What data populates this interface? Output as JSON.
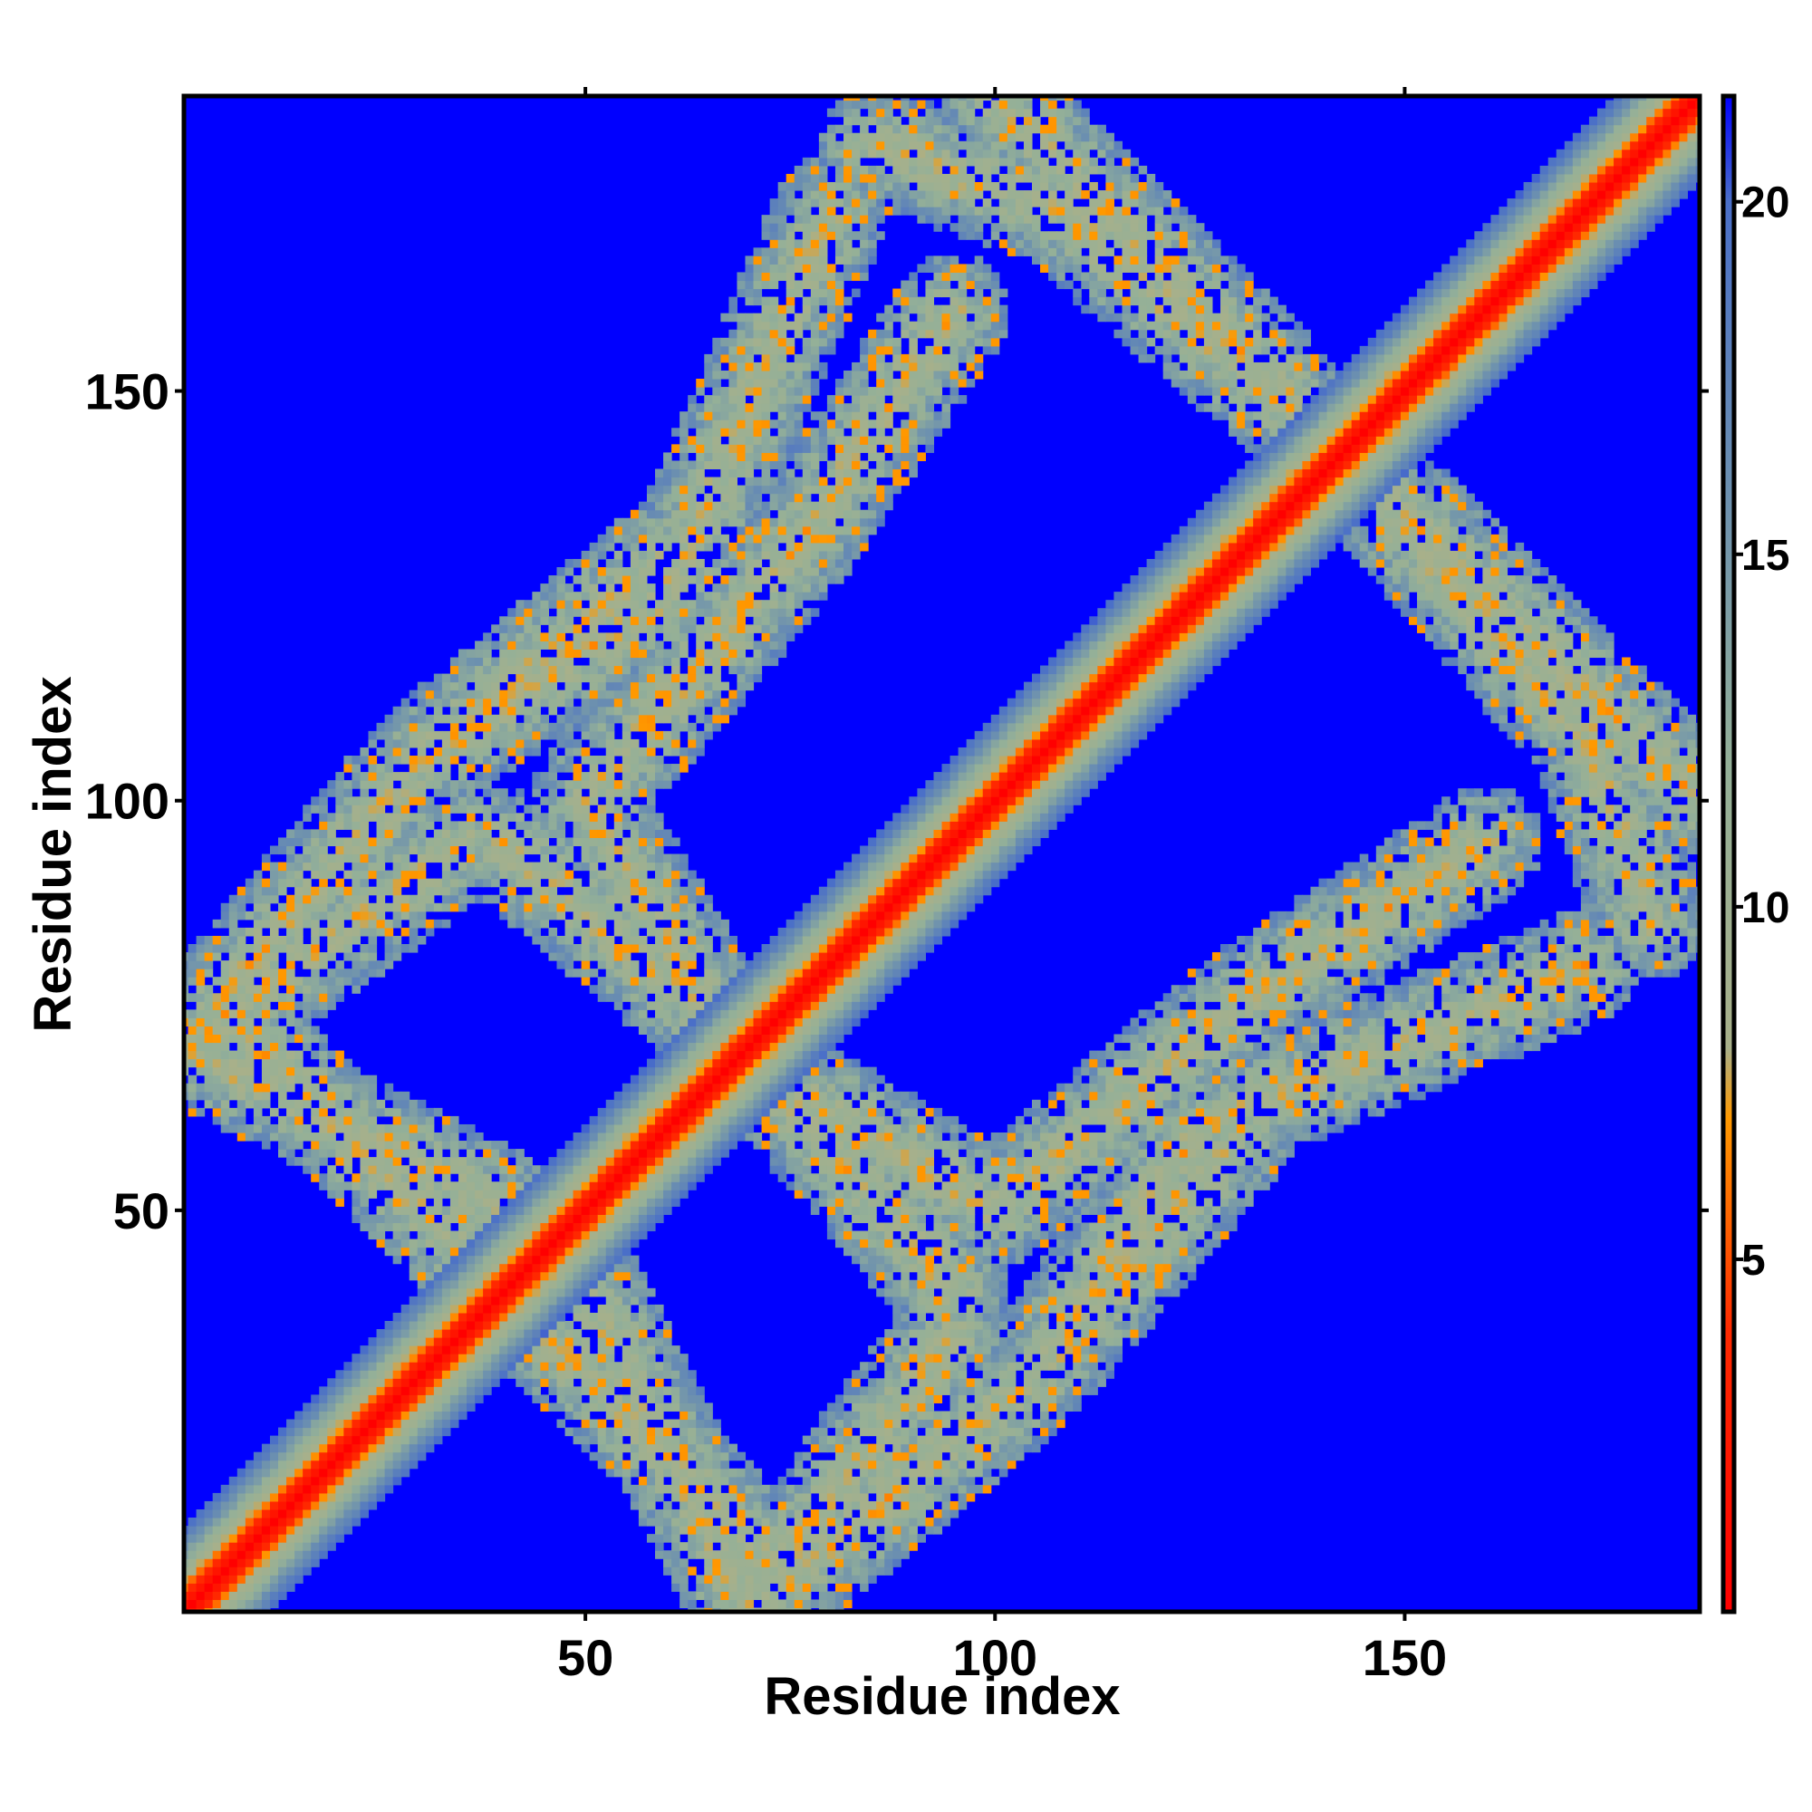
{
  "chart_data": {
    "type": "heatmap",
    "description_kind": "residue distance map",
    "xlabel": "Residue index",
    "ylabel": "Residue index",
    "n_residues": 186,
    "xlim": [
      1,
      186
    ],
    "ylim": [
      1,
      186
    ],
    "x_ticks": [
      50,
      100,
      150
    ],
    "x_tick_labels": [
      "50",
      "100",
      "150"
    ],
    "y_ticks": [
      50,
      100,
      150
    ],
    "y_tick_labels": [
      "50",
      "100",
      "150"
    ],
    "colorbar": {
      "range": [
        0,
        21.5
      ],
      "ticks": [
        5,
        10,
        15,
        20
      ],
      "tick_labels": [
        "5",
        "10",
        "15",
        "20"
      ],
      "stops": [
        {
          "value": 0,
          "color": "#ff0000"
        },
        {
          "value": 4,
          "color": "#ff2a00"
        },
        {
          "value": 7,
          "color": "#ff9900"
        },
        {
          "value": 8,
          "color": "#a8b08a"
        },
        {
          "value": 12,
          "color": "#94b098"
        },
        {
          "value": 16,
          "color": "#6b8fb0"
        },
        {
          "value": 20,
          "color": "#4a6fc8"
        },
        {
          "value": 21.5,
          "color": "#0000ff"
        }
      ]
    },
    "background_color": "#0000ff",
    "contact_bands": [
      {
        "from": [
          1,
          70
        ],
        "to": [
          35,
          95
        ],
        "description": "near-diagonal band bottom-left"
      },
      {
        "from": [
          1,
          70
        ],
        "to": [
          45,
          48
        ],
        "description": "lower arm"
      },
      {
        "from": [
          30,
          105
        ],
        "to": [
          60,
          125
        ],
        "description": "upper-left band"
      },
      {
        "from": [
          60,
          125
        ],
        "to": [
          80,
          172
        ],
        "description": "upper arm"
      },
      {
        "from": [
          85,
          180
        ],
        "to": [
          115,
          170
        ],
        "description": "top band"
      },
      {
        "from": [
          110,
          170
        ],
        "to": [
          145,
          140
        ],
        "description": "top-right arm"
      },
      {
        "from": [
          40,
          95
        ],
        "to": [
          75,
          65
        ],
        "description": "middle-left band"
      },
      {
        "from": [
          75,
          65
        ],
        "to": [
          100,
          50
        ],
        "description": "middle band"
      },
      {
        "from": [
          100,
          50
        ],
        "to": [
          130,
          75
        ],
        "description": "center-right band"
      },
      {
        "from": [
          130,
          75
        ],
        "to": [
          160,
          95
        ],
        "description": "right band"
      },
      {
        "from": [
          145,
          140
        ],
        "to": [
          186,
          100
        ],
        "description": "far right band"
      },
      {
        "from": [
          45,
          35
        ],
        "to": [
          75,
          5
        ],
        "description": "bottom band"
      },
      {
        "from": [
          75,
          5
        ],
        "to": [
          105,
          30
        ],
        "description": "bottom middle band"
      },
      {
        "from": [
          105,
          30
        ],
        "to": [
          130,
          60
        ],
        "description": "bottom right band"
      }
    ]
  }
}
